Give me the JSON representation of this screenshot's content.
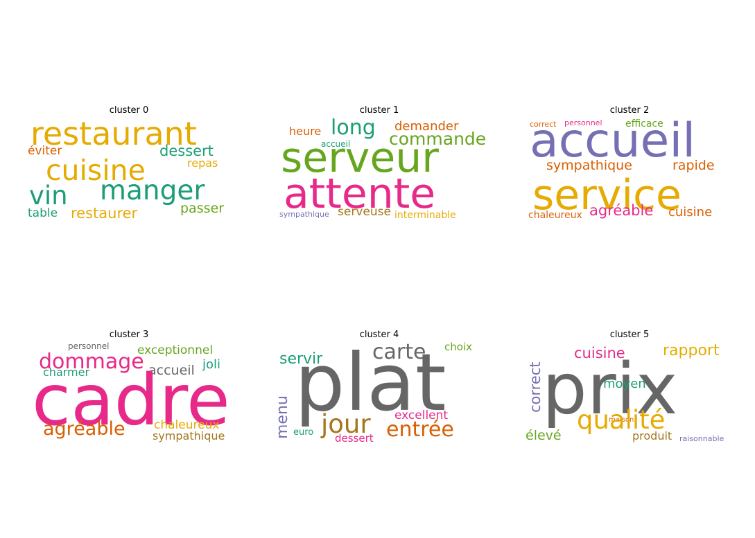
{
  "chart_data": [
    {
      "type": "wordcloud",
      "title": "cluster 0",
      "words": [
        {
          "text": "restaurant",
          "color": "#e6ab02"
        },
        {
          "text": "éviter",
          "color": "#d95f02"
        },
        {
          "text": "dessert",
          "color": "#1b9e77"
        },
        {
          "text": "cuisine",
          "color": "#e6ab02"
        },
        {
          "text": "repas",
          "color": "#e6ab02"
        },
        {
          "text": "vin",
          "color": "#1b9e77"
        },
        {
          "text": "manger",
          "color": "#1b9e77"
        },
        {
          "text": "table",
          "color": "#1b9e77"
        },
        {
          "text": "restaurer",
          "color": "#e6ab02"
        },
        {
          "text": "passer",
          "color": "#66a61e"
        }
      ]
    },
    {
      "type": "wordcloud",
      "title": "cluster 1",
      "words": [
        {
          "text": "heure",
          "color": "#d95f02"
        },
        {
          "text": "long",
          "color": "#1b9e77"
        },
        {
          "text": "demander",
          "color": "#d95f02"
        },
        {
          "text": "accueil",
          "color": "#1b9e77"
        },
        {
          "text": "commande",
          "color": "#66a61e"
        },
        {
          "text": "serveur",
          "color": "#66a61e"
        },
        {
          "text": "attente",
          "color": "#e7298a"
        },
        {
          "text": "sympathique",
          "color": "#7570b3"
        },
        {
          "text": "serveuse",
          "color": "#a6761d"
        },
        {
          "text": "interminable",
          "color": "#e6ab02"
        }
      ]
    },
    {
      "type": "wordcloud",
      "title": "cluster 2",
      "words": [
        {
          "text": "correct",
          "color": "#d95f02"
        },
        {
          "text": "personnel",
          "color": "#e7298a"
        },
        {
          "text": "efficace",
          "color": "#66a61e"
        },
        {
          "text": "accueil",
          "color": "#7570b3"
        },
        {
          "text": "sympathique",
          "color": "#d95f02"
        },
        {
          "text": "rapide",
          "color": "#d95f02"
        },
        {
          "text": "service",
          "color": "#e6ab02"
        },
        {
          "text": "chaleureux",
          "color": "#d95f02"
        },
        {
          "text": "agréable",
          "color": "#e7298a"
        },
        {
          "text": "cuisine",
          "color": "#d95f02"
        }
      ]
    },
    {
      "type": "wordcloud",
      "title": "cluster 3",
      "words": [
        {
          "text": "personnel",
          "color": "#666666"
        },
        {
          "text": "exceptionnel",
          "color": "#66a61e"
        },
        {
          "text": "dommage",
          "color": "#e7298a"
        },
        {
          "text": "joli",
          "color": "#1b9e77"
        },
        {
          "text": "charmer",
          "color": "#1b9e77"
        },
        {
          "text": "accueil",
          "color": "#666666"
        },
        {
          "text": "cadre",
          "color": "#e7298a"
        },
        {
          "text": "agréable",
          "color": "#d95f02"
        },
        {
          "text": "chaleureux",
          "color": "#e6ab02"
        },
        {
          "text": "sympathique",
          "color": "#a6761d"
        }
      ]
    },
    {
      "type": "wordcloud",
      "title": "cluster 4",
      "words": [
        {
          "text": "servir",
          "color": "#1b9e77"
        },
        {
          "text": "carte",
          "color": "#666666"
        },
        {
          "text": "choix",
          "color": "#66a61e"
        },
        {
          "text": "plat",
          "color": "#666666"
        },
        {
          "text": "menu",
          "color": "#7570b3",
          "vertical": true
        },
        {
          "text": "jour",
          "color": "#a6761d"
        },
        {
          "text": "excellent",
          "color": "#e7298a"
        },
        {
          "text": "euro",
          "color": "#1b9e77"
        },
        {
          "text": "dessert",
          "color": "#e7298a"
        },
        {
          "text": "entrée",
          "color": "#d95f02"
        }
      ]
    },
    {
      "type": "wordcloud",
      "title": "cluster 5",
      "words": [
        {
          "text": "correct",
          "color": "#7570b3",
          "vertical": true
        },
        {
          "text": "cuisine",
          "color": "#e7298a"
        },
        {
          "text": "rapport",
          "color": "#e6ab02"
        },
        {
          "text": "prix",
          "color": "#666666"
        },
        {
          "text": "moyen",
          "color": "#1b9e77"
        },
        {
          "text": "maison",
          "color": "#d95f02"
        },
        {
          "text": "qualité",
          "color": "#e6ab02"
        },
        {
          "text": "élevé",
          "color": "#66a61e"
        },
        {
          "text": "produit",
          "color": "#a6761d"
        },
        {
          "text": "raisonnable",
          "color": "#7570b3"
        }
      ]
    }
  ]
}
